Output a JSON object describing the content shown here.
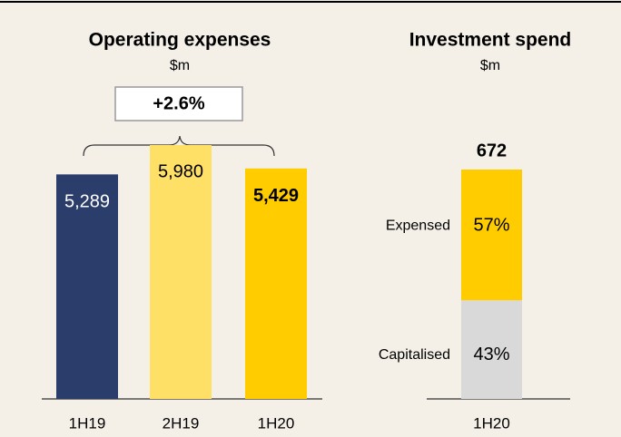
{
  "chart_data": [
    {
      "type": "bar",
      "title": "Operating expenses",
      "subtitle": "$m",
      "categories": [
        "1H19",
        "2H19",
        "1H20"
      ],
      "values": [
        5289,
        5980,
        5429
      ],
      "value_labels": [
        "5,289",
        "5,980",
        "5,429"
      ],
      "colors": [
        "#2b3d6b",
        "#ffe066",
        "#ffcc00"
      ],
      "annotation": "+2.6%"
    },
    {
      "type": "stacked_bar",
      "title": "Investment spend",
      "subtitle": "$m",
      "categories": [
        "1H20"
      ],
      "total": 672,
      "series": [
        {
          "name": "Capitalised",
          "color": "#d9d9d9",
          "values": [
            43
          ],
          "value_labels": [
            "43%"
          ]
        },
        {
          "name": "Expensed",
          "color": "#ffcc00",
          "values": [
            57
          ],
          "value_labels": [
            "57%"
          ]
        }
      ]
    }
  ]
}
